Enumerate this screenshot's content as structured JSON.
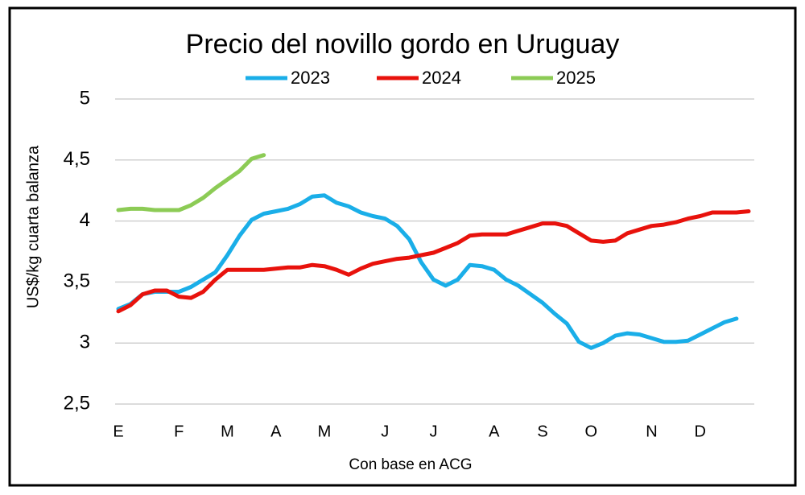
{
  "chart_data": {
    "type": "line",
    "title": "Precio del novillo gordo en Uruguay",
    "y_label": "US$/kg cuarta balanza",
    "x_label": "Con base en ACG",
    "categories": [
      "E",
      null,
      null,
      null,
      null,
      "F",
      null,
      null,
      null,
      "M",
      null,
      null,
      null,
      "A",
      null,
      null,
      null,
      "M",
      null,
      null,
      null,
      null,
      "J",
      null,
      null,
      null,
      "J",
      null,
      null,
      null,
      null,
      "A",
      null,
      null,
      null,
      "S",
      null,
      null,
      null,
      "O",
      null,
      null,
      null,
      null,
      "N",
      null,
      null,
      null,
      "D",
      null,
      null,
      null,
      null
    ],
    "series": [
      {
        "name": "2023",
        "color": "#1aaee8",
        "values": [
          3.28,
          3.32,
          3.4,
          3.42,
          3.42,
          3.42,
          3.46,
          3.52,
          3.58,
          3.72,
          3.88,
          4.01,
          4.06,
          4.08,
          4.1,
          4.14,
          4.2,
          4.21,
          4.15,
          4.12,
          4.07,
          4.04,
          4.02,
          3.96,
          3.85,
          3.66,
          3.52,
          3.47,
          3.52,
          3.64,
          3.63,
          3.6,
          3.52,
          3.47,
          3.4,
          3.33,
          3.24,
          3.16,
          3.01,
          2.96,
          3.0,
          3.06,
          3.08,
          3.07,
          3.04,
          3.01,
          3.01,
          3.02,
          3.07,
          3.12,
          3.17,
          3.2,
          null
        ]
      },
      {
        "name": "2024",
        "color": "#e8120c",
        "values": [
          3.26,
          3.31,
          3.4,
          3.43,
          3.43,
          3.38,
          3.37,
          3.42,
          3.52,
          3.6,
          3.6,
          3.6,
          3.6,
          3.61,
          3.62,
          3.62,
          3.64,
          3.63,
          3.6,
          3.56,
          3.61,
          3.65,
          3.67,
          3.69,
          3.7,
          3.72,
          3.74,
          3.78,
          3.82,
          3.88,
          3.89,
          3.89,
          3.89,
          3.92,
          3.95,
          3.98,
          3.98,
          3.96,
          3.9,
          3.84,
          3.83,
          3.84,
          3.9,
          3.93,
          3.96,
          3.97,
          3.99,
          4.02,
          4.04,
          4.07,
          4.07,
          4.07,
          4.08
        ]
      },
      {
        "name": "2025",
        "color": "#8ccb55",
        "values": [
          4.09,
          4.1,
          4.1,
          4.09,
          4.09,
          4.09,
          4.13,
          4.19,
          4.27,
          4.34,
          4.41,
          4.51,
          4.54,
          null,
          null,
          null,
          null,
          null,
          null,
          null,
          null,
          null,
          null,
          null,
          null,
          null,
          null,
          null,
          null,
          null,
          null,
          null,
          null,
          null,
          null,
          null,
          null,
          null,
          null,
          null,
          null,
          null,
          null,
          null,
          null,
          null,
          null,
          null,
          null,
          null,
          null,
          null,
          null
        ]
      }
    ],
    "ylim": [
      2.5,
      5
    ],
    "yticks": [
      {
        "value": 2.5,
        "label": "2,5"
      },
      3,
      {
        "value": 3.5,
        "label": "3,5"
      },
      4,
      {
        "value": 4.5,
        "label": "4,5"
      },
      5
    ],
    "grid": true
  }
}
